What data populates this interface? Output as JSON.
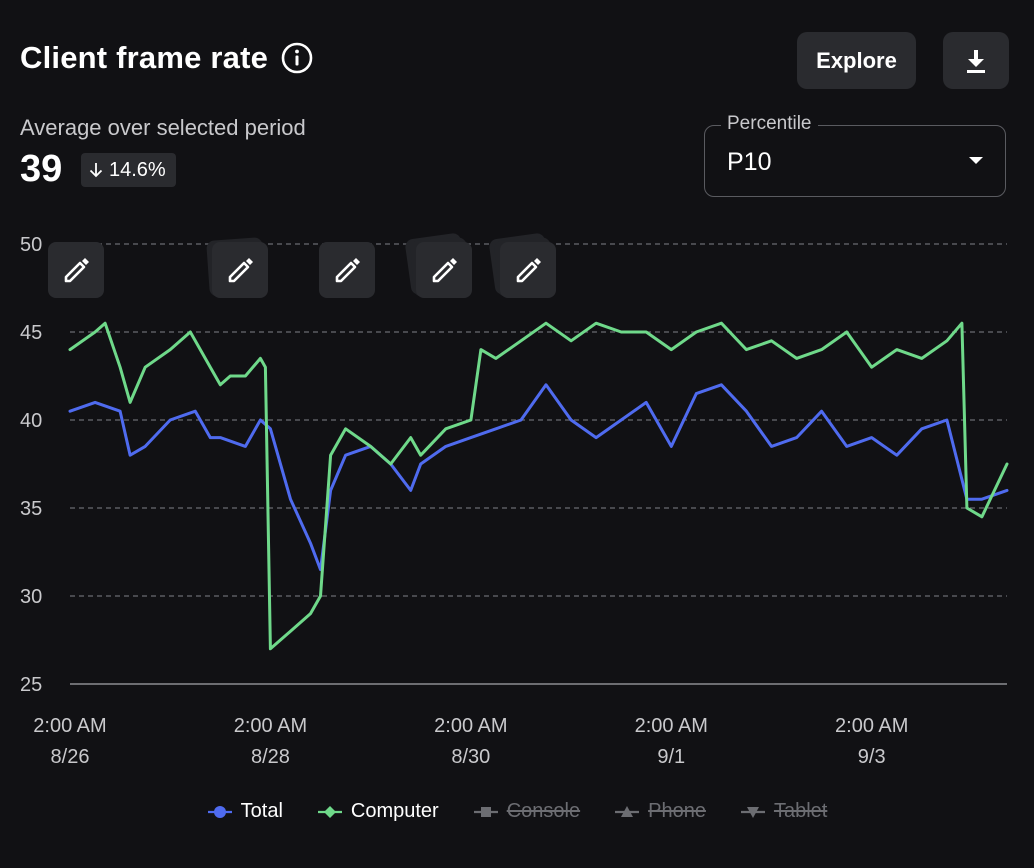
{
  "header": {
    "title": "Client frame rate",
    "explore_label": "Explore",
    "info_icon": "info-icon",
    "download_icon": "download-icon"
  },
  "summary": {
    "label": "Average over selected period",
    "value": "39",
    "delta": "14.6%",
    "delta_direction": "down"
  },
  "percentile": {
    "label": "Percentile",
    "value": "P10"
  },
  "colors": {
    "background": "#111114",
    "total": "#4f6bef",
    "computer": "#6fd98a",
    "disabled": "#6c6d72"
  },
  "annotations": {
    "icon": "pencil-icon",
    "count": 5
  },
  "legend": [
    {
      "label": "Total",
      "marker": "circle",
      "enabled": true
    },
    {
      "label": "Computer",
      "marker": "diamond",
      "enabled": true
    },
    {
      "label": "Console",
      "marker": "square",
      "enabled": false
    },
    {
      "label": "Phone",
      "marker": "triangle-up",
      "enabled": false
    },
    {
      "label": "Tablet",
      "marker": "triangle-down",
      "enabled": false
    }
  ],
  "chart_data": {
    "type": "line",
    "title": "Client frame rate",
    "ylim": [
      25,
      50
    ],
    "yticks": [
      25,
      30,
      35,
      40,
      45,
      50
    ],
    "grid": true,
    "legend_position": "bottom",
    "xlim": [
      0,
      9.35
    ],
    "xticks": [
      {
        "x": 0,
        "line1": "2:00 AM",
        "line2": "8/26"
      },
      {
        "x": 2,
        "line1": "2:00 AM",
        "line2": "8/28"
      },
      {
        "x": 4,
        "line1": "2:00 AM",
        "line2": "8/30"
      },
      {
        "x": 6,
        "line1": "2:00 AM",
        "line2": "9/1"
      },
      {
        "x": 8,
        "line1": "2:00 AM",
        "line2": "9/3"
      }
    ],
    "series": [
      {
        "name": "Total",
        "x": [
          0,
          0.25,
          0.5,
          0.6,
          0.75,
          1.0,
          1.25,
          1.4,
          1.5,
          1.75,
          1.9,
          2.0,
          2.2,
          2.4,
          2.5,
          2.6,
          2.75,
          3.0,
          3.2,
          3.4,
          3.5,
          3.75,
          4.0,
          4.25,
          4.5,
          4.75,
          5.0,
          5.25,
          5.5,
          5.75,
          6.0,
          6.25,
          6.5,
          6.75,
          7.0,
          7.25,
          7.5,
          7.75,
          8.0,
          8.25,
          8.5,
          8.75,
          8.95,
          9.1,
          9.35
        ],
        "y": [
          40.5,
          41,
          40.5,
          38,
          38.5,
          40,
          40.5,
          39,
          39,
          38.5,
          40,
          39.5,
          35.5,
          33,
          31.5,
          36,
          38,
          38.5,
          37.5,
          36,
          37.5,
          38.5,
          39,
          39.5,
          40,
          42,
          40,
          39,
          40,
          41,
          38.5,
          41.5,
          42,
          40.5,
          38.5,
          39,
          40.5,
          38.5,
          39,
          38,
          39.5,
          40,
          35.5,
          35.5,
          36
        ]
      },
      {
        "name": "Computer",
        "x": [
          0,
          0.25,
          0.35,
          0.5,
          0.6,
          0.75,
          1.0,
          1.2,
          1.4,
          1.5,
          1.6,
          1.75,
          1.9,
          1.95,
          2.0,
          2.2,
          2.4,
          2.5,
          2.6,
          2.75,
          3.0,
          3.2,
          3.4,
          3.5,
          3.75,
          4.0,
          4.1,
          4.25,
          4.5,
          4.75,
          5.0,
          5.25,
          5.5,
          5.75,
          6.0,
          6.25,
          6.5,
          6.75,
          7.0,
          7.25,
          7.5,
          7.75,
          8.0,
          8.25,
          8.5,
          8.75,
          8.9,
          8.95,
          9.1,
          9.35
        ],
        "y": [
          44,
          45,
          45.5,
          43,
          41,
          43,
          44,
          45,
          43,
          42,
          42.5,
          42.5,
          43.5,
          43,
          27,
          28,
          29,
          30,
          38,
          39.5,
          38.5,
          37.5,
          39,
          38,
          39.5,
          40,
          44,
          43.5,
          44.5,
          45.5,
          44.5,
          45.5,
          45,
          45,
          44,
          45,
          45.5,
          44,
          44.5,
          43.5,
          44,
          45,
          43,
          44,
          43.5,
          44.5,
          45.5,
          35,
          34.5,
          37.5
        ]
      }
    ]
  }
}
